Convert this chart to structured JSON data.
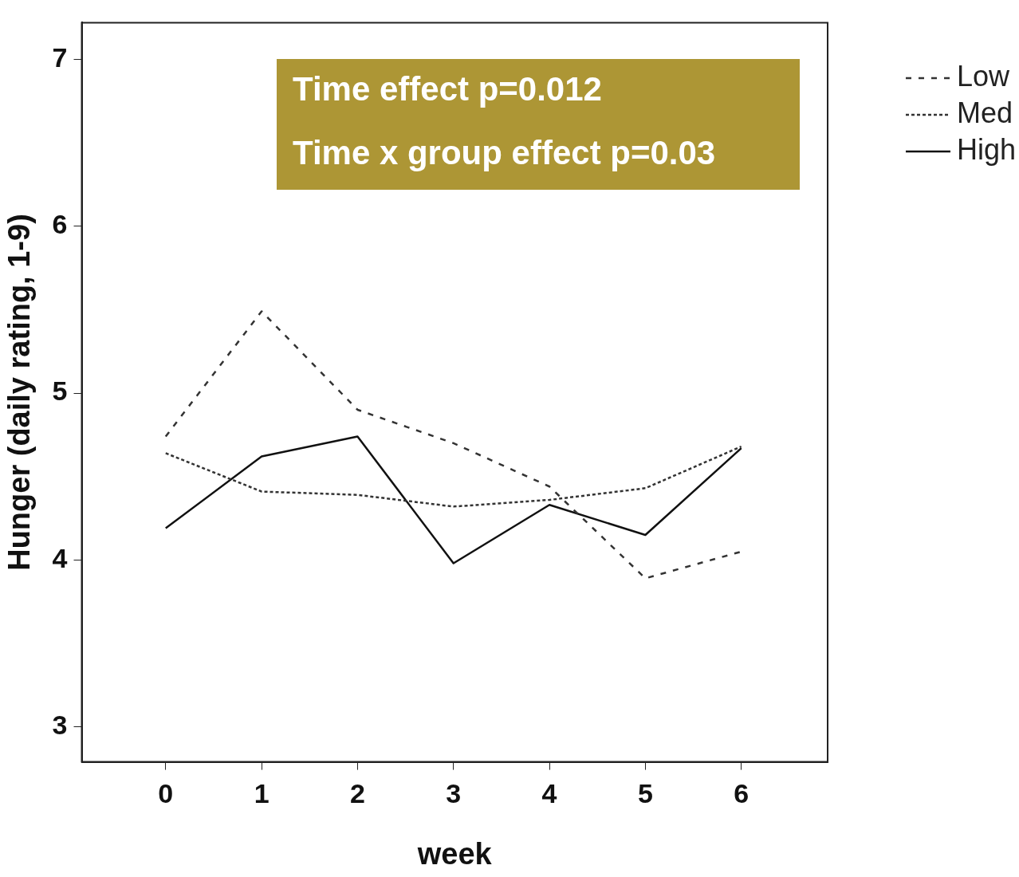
{
  "chart_data": {
    "type": "line",
    "xlabel": "week",
    "ylabel": "Hunger (daily rating, 1-9)",
    "x": [
      0,
      1,
      2,
      3,
      4,
      5,
      6
    ],
    "xlim": [
      -0.875,
      6.9
    ],
    "xticks": [
      0,
      1,
      2,
      3,
      4,
      5,
      6
    ],
    "ylim": [
      2.79,
      7.22
    ],
    "yticks": [
      3,
      4,
      5,
      6,
      7
    ],
    "grid": false,
    "legend": "top right",
    "annotations": [
      "Time effect p=0.012",
      "Time x group effect p=0.03"
    ],
    "series": [
      {
        "name": "Low",
        "color": "#333333",
        "line_style": "dashed",
        "values": [
          4.74,
          5.49,
          4.9,
          4.7,
          4.44,
          3.89,
          4.05
        ]
      },
      {
        "name": "Med",
        "color": "#333333",
        "line_style": "dotted",
        "values": [
          4.64,
          4.41,
          4.39,
          4.32,
          4.36,
          4.43,
          4.68
        ]
      },
      {
        "name": "High",
        "color": "#111111",
        "line_style": "solid",
        "values": [
          4.19,
          4.62,
          4.74,
          3.98,
          4.33,
          4.15,
          4.67
        ]
      }
    ]
  }
}
